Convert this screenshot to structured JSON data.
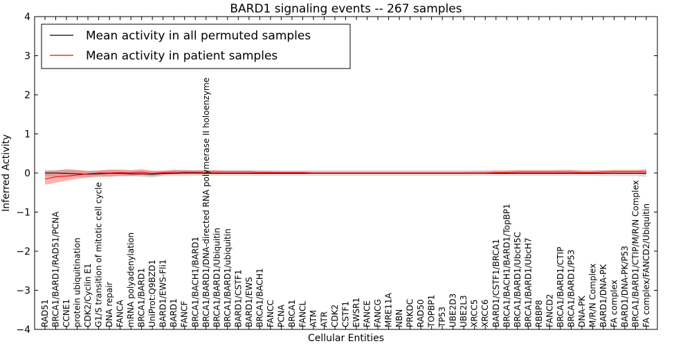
{
  "chart_data": {
    "type": "line",
    "title": "BARD1 signaling events -- 267 samples",
    "xlabel": "Cellular Entities",
    "ylabel": "Inferred Activity",
    "ylim": [
      -4,
      4
    ],
    "yticks": [
      4,
      3,
      2,
      1,
      0,
      -1,
      -2,
      -3,
      -4
    ],
    "ytick_labels": [
      "4",
      "3",
      "2",
      "1",
      "0",
      "−1",
      "−2",
      "−3",
      "−4"
    ],
    "grid": false,
    "legend_position": "top-left",
    "categories": [
      "RAD51",
      "BRCA1/BARD1/RAD51/PCNA",
      "CCNE1",
      "protein ubiquitination",
      "CDK2/Cyclin E1",
      "G1/S transition of mitotic cell cycle",
      "DNA repair",
      "FANCA",
      "mRNA polyadenylation",
      "BRCA1/BARD1",
      "UniProt:Q9BZD1",
      "BARD1/EWS-Fli1",
      "BARD1",
      "FANCF",
      "BRCA1/BACH1/BARD1",
      "BRCA1/BARD1/DNA-directed RNA polymerase II holoenzyme",
      "BRCA1/BARD1/Ubiquitin",
      "BRCA1/BARD1/ubiquitin",
      "BARD1/CSTF1",
      "BARD1/EWS",
      "BRCA1/BACH1",
      "FANCC",
      "PCNA",
      "BRCA1",
      "FANCL",
      "ATM",
      "ATR",
      "CDK2",
      "CSTF1",
      "EWSR1",
      "FANCE",
      "FANCG",
      "MRE11A",
      "NBN",
      "PRKDC",
      "RAD50",
      "TOPBP1",
      "TP53",
      "UBE2D3",
      "UBE2L3",
      "XRCC5",
      "XRCC6",
      "BARD1/CSTF1/BRCA1",
      "BRCA1/BACH1/BARD1/TopBP1",
      "BRCA1/BARD1/UbcH5C",
      "BRCA1/BARD1/UbcH7",
      "RBBP8",
      "FANCD2",
      "BRCA1/BARD1/CTIP",
      "BRCA1/BARD1/P53",
      "DNA-PK",
      "M/R/N Complex",
      "BARD1/DNA-PK",
      "FA complex",
      "BARD1/DNA-PK/P53",
      "BRCA1/BARD1/CTIP/M/R/N Complex",
      "FA complex/FANCD2/Ubiquitin"
    ],
    "series": [
      {
        "name": "Mean activity in all permuted samples",
        "color": "#000000",
        "values": [
          0.0,
          0.0,
          -0.01,
          -0.02,
          -0.03,
          -0.02,
          -0.01,
          -0.01,
          -0.02,
          -0.02,
          -0.03,
          -0.01,
          -0.01,
          0.0,
          0.0,
          -0.01,
          -0.01,
          -0.01,
          -0.01,
          -0.01,
          -0.01,
          -0.01,
          -0.01,
          -0.01,
          -0.01,
          -0.01,
          -0.01,
          -0.01,
          -0.01,
          -0.01,
          -0.01,
          -0.01,
          -0.01,
          -0.01,
          -0.01,
          -0.01,
          -0.01,
          -0.01,
          -0.01,
          -0.01,
          -0.01,
          -0.01,
          -0.01,
          -0.01,
          -0.01,
          -0.01,
          -0.01,
          -0.01,
          -0.01,
          -0.01,
          -0.01,
          -0.01,
          -0.01,
          -0.01,
          -0.01,
          -0.01,
          -0.01
        ],
        "band_low": [
          -0.08,
          -0.1,
          -0.1,
          -0.1,
          -0.1,
          -0.08,
          -0.08,
          -0.08,
          -0.08,
          -0.1,
          -0.12,
          -0.08,
          -0.08,
          -0.08,
          -0.07,
          -0.07,
          -0.07,
          -0.07,
          -0.07,
          -0.07,
          -0.07,
          -0.07,
          -0.07,
          -0.07,
          -0.07,
          -0.07,
          -0.07,
          -0.07,
          -0.07,
          -0.07,
          -0.07,
          -0.07,
          -0.07,
          -0.07,
          -0.07,
          -0.07,
          -0.07,
          -0.07,
          -0.07,
          -0.07,
          -0.07,
          -0.07,
          -0.07,
          -0.07,
          -0.07,
          -0.07,
          -0.07,
          -0.07,
          -0.07,
          -0.07,
          -0.07,
          -0.07,
          -0.08,
          -0.08,
          -0.08,
          -0.08,
          -0.1
        ],
        "band_high": [
          0.08,
          0.08,
          0.08,
          0.07,
          0.06,
          0.07,
          0.07,
          0.07,
          0.07,
          0.06,
          0.05,
          0.07,
          0.07,
          0.07,
          0.07,
          0.07,
          0.07,
          0.07,
          0.07,
          0.07,
          0.07,
          0.07,
          0.07,
          0.07,
          0.07,
          0.07,
          0.07,
          0.07,
          0.07,
          0.07,
          0.07,
          0.07,
          0.07,
          0.07,
          0.07,
          0.07,
          0.07,
          0.07,
          0.07,
          0.07,
          0.07,
          0.07,
          0.07,
          0.07,
          0.07,
          0.07,
          0.07,
          0.07,
          0.07,
          0.07,
          0.07,
          0.07,
          0.07,
          0.07,
          0.07,
          0.07,
          0.07
        ]
      },
      {
        "name": "Mean activity in patient samples",
        "color": "#ff0000",
        "values": [
          -0.15,
          -0.1,
          -0.08,
          -0.05,
          -0.02,
          0.0,
          0.0,
          0.01,
          0.0,
          0.02,
          -0.01,
          0.01,
          0.02,
          0.02,
          0.02,
          0.02,
          0.02,
          0.02,
          0.02,
          0.02,
          0.01,
          0.01,
          0.01,
          0.01,
          0.01,
          0.0,
          0.0,
          0.0,
          0.0,
          0.0,
          0.0,
          0.0,
          0.0,
          0.0,
          0.0,
          0.0,
          0.0,
          0.0,
          0.0,
          0.0,
          0.0,
          0.0,
          0.01,
          0.01,
          0.02,
          0.02,
          0.02,
          0.02,
          0.02,
          0.02,
          0.01,
          0.01,
          0.02,
          0.03,
          0.03,
          0.03,
          0.03
        ],
        "band_low": [
          -0.3,
          -0.25,
          -0.2,
          -0.15,
          -0.12,
          -0.1,
          -0.1,
          -0.08,
          -0.08,
          -0.06,
          -0.08,
          -0.05,
          -0.03,
          -0.03,
          -0.03,
          -0.02,
          -0.02,
          -0.02,
          -0.02,
          -0.02,
          -0.02,
          -0.02,
          -0.02,
          -0.02,
          -0.02,
          -0.02,
          -0.02,
          -0.02,
          -0.02,
          -0.02,
          -0.02,
          -0.02,
          -0.02,
          -0.02,
          -0.02,
          -0.02,
          -0.02,
          -0.02,
          -0.02,
          -0.02,
          -0.02,
          -0.02,
          -0.02,
          -0.02,
          -0.02,
          -0.02,
          -0.02,
          -0.02,
          -0.02,
          -0.02,
          -0.02,
          -0.02,
          -0.02,
          -0.02,
          -0.02,
          -0.02,
          -0.03
        ],
        "band_high": [
          0.05,
          0.06,
          0.1,
          0.08,
          0.05,
          0.06,
          0.09,
          0.09,
          0.07,
          0.1,
          0.06,
          0.05,
          0.08,
          0.08,
          0.07,
          0.07,
          0.07,
          0.06,
          0.06,
          0.06,
          0.05,
          0.05,
          0.04,
          0.04,
          0.04,
          0.03,
          0.03,
          0.03,
          0.03,
          0.03,
          0.03,
          0.03,
          0.03,
          0.03,
          0.03,
          0.03,
          0.03,
          0.03,
          0.03,
          0.03,
          0.04,
          0.04,
          0.06,
          0.06,
          0.07,
          0.07,
          0.07,
          0.07,
          0.08,
          0.08,
          0.06,
          0.06,
          0.07,
          0.08,
          0.08,
          0.08,
          0.1
        ]
      }
    ]
  }
}
